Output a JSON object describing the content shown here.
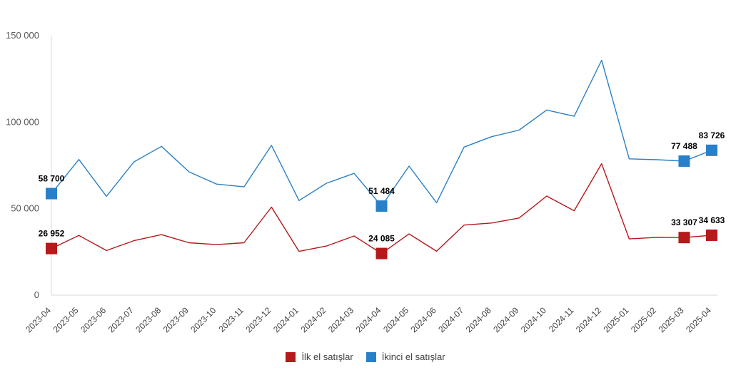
{
  "chart_data": {
    "type": "line",
    "categories": [
      "2023-04",
      "2023-05",
      "2023-06",
      "2023-07",
      "2023-08",
      "2023-09",
      "2023-10",
      "2023-11",
      "2023-12",
      "2024-01",
      "2024-02",
      "2024-03",
      "2024-04",
      "2024-05",
      "2024-06",
      "2024-07",
      "2024-08",
      "2024-09",
      "2024-10",
      "2024-11",
      "2024-12",
      "2025-01",
      "2025-02",
      "2025-03",
      "2025-04"
    ],
    "y_ticks": [
      "0",
      "50 000",
      "100 000",
      "150 000"
    ],
    "ylim": [
      0,
      150000
    ],
    "grid": false,
    "legend_position": "bottom",
    "series": [
      {
        "name": "İlk el satışlar",
        "color": "#B5191A",
        "values": [
          26952,
          34500,
          25800,
          31500,
          35000,
          30300,
          29200,
          30300,
          50900,
          25300,
          28400,
          34200,
          24085,
          35400,
          25400,
          40500,
          41700,
          44600,
          57300,
          48800,
          76000,
          32500,
          33400,
          33307,
          34633
        ]
      },
      {
        "name": "İkinci el satışlar",
        "color": "#2980C8",
        "values": [
          58700,
          78400,
          57100,
          77000,
          86000,
          71300,
          64200,
          62600,
          86600,
          54700,
          64700,
          70400,
          51484,
          74600,
          53400,
          85600,
          91600,
          95400,
          107000,
          103400,
          135800,
          78800,
          78300,
          77488,
          83726
        ]
      }
    ],
    "data_labels": [
      {
        "series": 0,
        "index": 0,
        "text": "26 952"
      },
      {
        "series": 0,
        "index": 12,
        "text": "24 085"
      },
      {
        "series": 0,
        "index": 23,
        "text": "33 307"
      },
      {
        "series": 0,
        "index": 24,
        "text": "34 633"
      },
      {
        "series": 1,
        "index": 0,
        "text": "58 700"
      },
      {
        "series": 1,
        "index": 12,
        "text": "51 484"
      },
      {
        "series": 1,
        "index": 23,
        "text": "77 488"
      },
      {
        "series": 1,
        "index": 24,
        "text": "83 726"
      }
    ]
  },
  "legend": {
    "items": [
      {
        "label": "İlk el satışlar",
        "color": "#B5191A"
      },
      {
        "label": "İkinci el satışlar",
        "color": "#2980C8"
      }
    ]
  }
}
